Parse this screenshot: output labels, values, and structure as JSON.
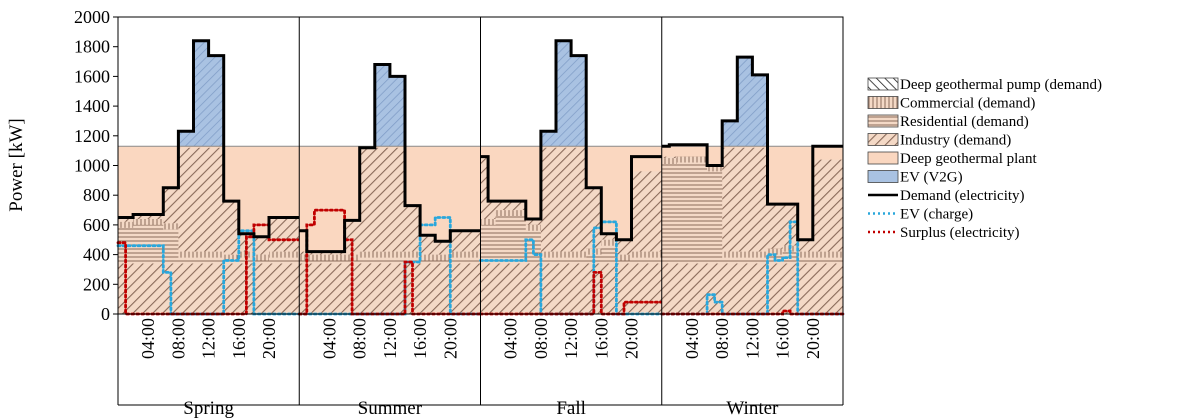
{
  "chart_data": {
    "type": "area",
    "ylabel": "Power [kW]",
    "ylim": [
      0,
      2000
    ],
    "y_ticks": [
      0,
      200,
      400,
      600,
      800,
      1000,
      1200,
      1400,
      1600,
      1800,
      2000
    ],
    "x_tick_labels": [
      "04:00",
      "08:00",
      "12:00",
      "16:00",
      "20:00"
    ],
    "x_tick_hours": [
      4,
      8,
      12,
      16,
      20
    ],
    "hours_per_season": 24,
    "seasons": [
      "Spring",
      "Summer",
      "Fall",
      "Winter"
    ],
    "grid": false,
    "legend_position": "right",
    "colors": {
      "deep_geothermal_plant": "#fad7c0",
      "ev_v2g": "#a9c2e2",
      "demand_line": "#000000",
      "ev_charge_line": "#29a7dc",
      "surplus_line": "#c00000",
      "hatch": "#8a6a5a"
    },
    "deep_geothermal_plant_capacity": 1130,
    "series": [
      {
        "name": "Deep geothermal pump (demand)",
        "kind": "area",
        "values": {
          "Spring": [
            340,
            340,
            340,
            340,
            340,
            340,
            340,
            340,
            340,
            340,
            340,
            340,
            340,
            340,
            340,
            340,
            340,
            340,
            340,
            340,
            340,
            340,
            340,
            340
          ],
          "Summer": [
            340,
            340,
            340,
            340,
            340,
            340,
            340,
            340,
            340,
            340,
            340,
            340,
            340,
            340,
            340,
            340,
            340,
            340,
            340,
            340,
            340,
            340,
            340,
            340
          ],
          "Fall": [
            340,
            340,
            340,
            340,
            340,
            340,
            340,
            340,
            340,
            340,
            340,
            340,
            340,
            340,
            340,
            340,
            340,
            340,
            340,
            340,
            340,
            340,
            340,
            340
          ],
          "Winter": [
            340,
            340,
            340,
            340,
            340,
            340,
            340,
            340,
            340,
            340,
            340,
            340,
            340,
            340,
            340,
            340,
            340,
            340,
            340,
            340,
            340,
            340,
            340,
            340
          ]
        }
      },
      {
        "name": "Commercial (demand)",
        "kind": "area",
        "values": {
          "Spring": [
            620,
            620,
            640,
            640,
            640,
            640,
            610,
            610,
            420,
            420,
            420,
            420,
            420,
            420,
            400,
            400,
            420,
            420,
            400,
            400,
            420,
            420,
            420,
            420
          ],
          "Summer": [
            400,
            400,
            400,
            400,
            400,
            400,
            400,
            400,
            420,
            420,
            420,
            420,
            420,
            420,
            420,
            420,
            400,
            400,
            400,
            400,
            420,
            420,
            420,
            420
          ],
          "Fall": [
            640,
            640,
            700,
            700,
            700,
            700,
            600,
            600,
            420,
            420,
            420,
            420,
            420,
            420,
            440,
            440,
            500,
            500,
            400,
            400,
            420,
            420,
            420,
            420
          ],
          "Winter": [
            1050,
            1050,
            1060,
            1060,
            1060,
            1060,
            1000,
            1000,
            420,
            420,
            420,
            420,
            420,
            420,
            440,
            440,
            460,
            460,
            420,
            420,
            420,
            420,
            420,
            420
          ]
        }
      },
      {
        "name": "Residential (demand)",
        "kind": "area",
        "values": {
          "Spring": [
            620,
            620,
            640,
            640,
            640,
            640,
            610,
            610,
            420,
            420,
            420,
            420,
            420,
            420,
            400,
            400,
            420,
            420,
            400,
            400,
            420,
            420,
            420,
            420
          ],
          "Summer": [
            400,
            400,
            400,
            400,
            400,
            400,
            400,
            400,
            420,
            420,
            420,
            420,
            420,
            420,
            420,
            420,
            400,
            400,
            400,
            400,
            420,
            420,
            420,
            420
          ],
          "Fall": [
            640,
            640,
            700,
            700,
            700,
            700,
            600,
            600,
            420,
            420,
            420,
            420,
            420,
            420,
            440,
            440,
            500,
            500,
            400,
            400,
            420,
            420,
            420,
            420
          ],
          "Winter": [
            1050,
            1050,
            1060,
            1060,
            1060,
            1060,
            1000,
            1000,
            420,
            420,
            420,
            420,
            420,
            420,
            440,
            440,
            460,
            460,
            420,
            420,
            420,
            420,
            420,
            420
          ]
        }
      },
      {
        "name": "Industry (demand)",
        "kind": "area",
        "values": {
          "Spring": [
            640,
            640,
            670,
            670,
            670,
            670,
            850,
            850,
            1120,
            1120,
            1120,
            1120,
            1120,
            1120,
            760,
            760,
            540,
            540,
            520,
            520,
            650,
            650,
            650,
            650
          ],
          "Summer": [
            420,
            420,
            420,
            420,
            420,
            420,
            630,
            630,
            1120,
            1120,
            1120,
            1120,
            1120,
            1120,
            730,
            730,
            530,
            530,
            490,
            490,
            560,
            560,
            560,
            560
          ],
          "Fall": [
            1050,
            760,
            760,
            760,
            760,
            760,
            640,
            640,
            1120,
            1120,
            1120,
            1120,
            1120,
            1120,
            850,
            850,
            540,
            540,
            500,
            500,
            960,
            960,
            960,
            960
          ],
          "Winter": [
            1060,
            1060,
            1060,
            1060,
            1060,
            1060,
            1000,
            1000,
            1120,
            1120,
            1120,
            1120,
            1120,
            1120,
            740,
            740,
            740,
            740,
            500,
            500,
            1040,
            1040,
            1040,
            1040
          ]
        }
      },
      {
        "name": "Deep geothermal plant",
        "kind": "band",
        "values": {
          "Spring": [
            1130,
            1130,
            1130,
            1130,
            1130,
            1130,
            1130,
            1130,
            1130,
            1130,
            1130,
            1130,
            1130,
            1130,
            1130,
            1130,
            1130,
            1130,
            1130,
            1130,
            1130,
            1130,
            1130,
            1130
          ],
          "Summer": [
            1130,
            1130,
            1130,
            1130,
            1130,
            1130,
            1130,
            1130,
            1130,
            1130,
            1130,
            1130,
            1130,
            1130,
            1130,
            1130,
            1130,
            1130,
            1130,
            1130,
            1130,
            1130,
            1130,
            1130
          ],
          "Fall": [
            1130,
            1130,
            1130,
            1130,
            1130,
            1130,
            1130,
            1130,
            1130,
            1130,
            1130,
            1130,
            1130,
            1130,
            1130,
            1130,
            1130,
            1130,
            1130,
            1130,
            1130,
            1130,
            1130,
            1130
          ],
          "Winter": [
            1130,
            1130,
            1130,
            1130,
            1130,
            1130,
            1130,
            1130,
            1130,
            1130,
            1130,
            1130,
            1130,
            1130,
            1130,
            1130,
            1130,
            1130,
            1130,
            1130,
            1130,
            1130,
            1130,
            1130
          ]
        }
      },
      {
        "name": "EV (V2G)",
        "kind": "area_above_plant"
      },
      {
        "name": "Demand (electricity)",
        "kind": "line",
        "values": {
          "Spring": [
            650,
            650,
            670,
            670,
            670,
            670,
            850,
            850,
            1230,
            1230,
            1840,
            1840,
            1740,
            1740,
            760,
            760,
            540,
            540,
            520,
            520,
            650,
            650,
            650,
            650
          ],
          "Summer": [
            560,
            420,
            420,
            420,
            420,
            420,
            630,
            630,
            1120,
            1120,
            1680,
            1680,
            1600,
            1600,
            730,
            730,
            530,
            530,
            490,
            490,
            560,
            560,
            560,
            560
          ],
          "Fall": [
            1060,
            760,
            760,
            760,
            760,
            760,
            640,
            640,
            1230,
            1230,
            1840,
            1840,
            1740,
            1740,
            850,
            850,
            540,
            540,
            500,
            500,
            1060,
            1060,
            1060,
            1060
          ],
          "Winter": [
            1130,
            1140,
            1140,
            1140,
            1140,
            1140,
            1000,
            1000,
            1300,
            1300,
            1730,
            1730,
            1610,
            1610,
            740,
            740,
            740,
            740,
            500,
            500,
            1130,
            1130,
            1130,
            1130
          ]
        }
      },
      {
        "name": "EV (charge)",
        "kind": "dotted",
        "values": {
          "Spring": [
            460,
            460,
            460,
            460,
            460,
            460,
            280,
            0,
            0,
            0,
            0,
            0,
            0,
            0,
            360,
            360,
            560,
            560,
            0,
            0,
            0,
            0,
            0,
            0
          ],
          "Summer": [
            0,
            0,
            0,
            0,
            0,
            0,
            0,
            0,
            0,
            0,
            0,
            0,
            0,
            0,
            350,
            350,
            600,
            600,
            650,
            650,
            0,
            0,
            0,
            0
          ],
          "Fall": [
            360,
            360,
            360,
            360,
            360,
            360,
            500,
            400,
            0,
            0,
            0,
            0,
            0,
            0,
            0,
            580,
            620,
            620,
            0,
            0,
            0,
            0,
            0,
            0
          ],
          "Winter": [
            0,
            0,
            0,
            0,
            0,
            0,
            130,
            80,
            0,
            0,
            0,
            0,
            0,
            0,
            400,
            360,
            380,
            620,
            0,
            0,
            0,
            0,
            0,
            0
          ]
        }
      },
      {
        "name": "Surplus (electricity)",
        "kind": "dotted",
        "values": {
          "Spring": [
            480,
            0,
            0,
            0,
            0,
            0,
            0,
            0,
            0,
            0,
            0,
            0,
            0,
            0,
            0,
            0,
            0,
            520,
            600,
            600,
            500,
            500,
            500,
            500
          ],
          "Summer": [
            0,
            600,
            700,
            700,
            700,
            700,
            500,
            0,
            0,
            0,
            0,
            0,
            0,
            0,
            350,
            0,
            0,
            0,
            0,
            0,
            0,
            0,
            0,
            0
          ],
          "Fall": [
            0,
            0,
            0,
            0,
            0,
            0,
            0,
            0,
            0,
            0,
            0,
            0,
            0,
            0,
            0,
            280,
            0,
            0,
            0,
            80,
            80,
            80,
            80,
            80
          ],
          "Winter": [
            0,
            0,
            0,
            0,
            0,
            0,
            0,
            0,
            0,
            0,
            0,
            0,
            0,
            0,
            0,
            0,
            20,
            0,
            0,
            0,
            0,
            0,
            0,
            0
          ]
        }
      }
    ]
  }
}
